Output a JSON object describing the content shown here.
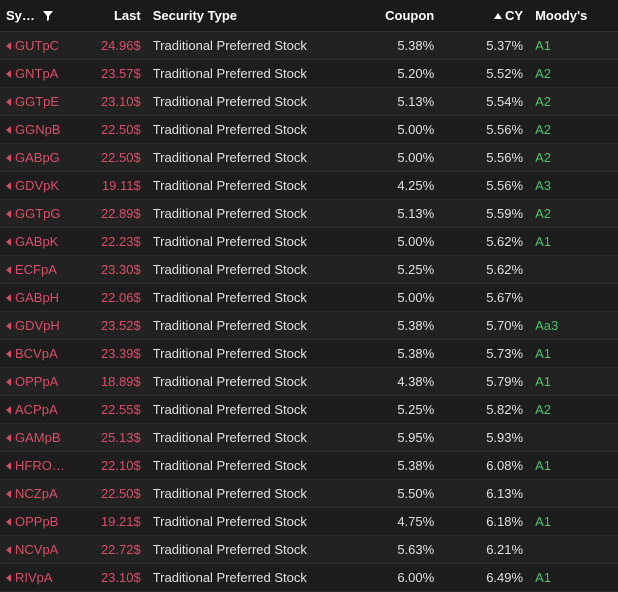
{
  "columns": {
    "symbol": "Sy…",
    "last": "Last",
    "security_type": "Security Type",
    "coupon": "Coupon",
    "cy": "CY",
    "moodys": "Moody's"
  },
  "rows": [
    {
      "symbol": "GUTpC",
      "last": "24.96$",
      "type": "Traditional Preferred Stock",
      "coupon": "5.38%",
      "cy": "5.37%",
      "moodys": "A1"
    },
    {
      "symbol": "GNTpA",
      "last": "23.57$",
      "type": "Traditional Preferred Stock",
      "coupon": "5.20%",
      "cy": "5.52%",
      "moodys": "A2"
    },
    {
      "symbol": "GGTpE",
      "last": "23.10$",
      "type": "Traditional Preferred Stock",
      "coupon": "5.13%",
      "cy": "5.54%",
      "moodys": "A2"
    },
    {
      "symbol": "GGNpB",
      "last": "22.50$",
      "type": "Traditional Preferred Stock",
      "coupon": "5.00%",
      "cy": "5.56%",
      "moodys": "A2"
    },
    {
      "symbol": "GABpG",
      "last": "22.50$",
      "type": "Traditional Preferred Stock",
      "coupon": "5.00%",
      "cy": "5.56%",
      "moodys": "A2"
    },
    {
      "symbol": "GDVpK",
      "last": "19.11$",
      "type": "Traditional Preferred Stock",
      "coupon": "4.25%",
      "cy": "5.56%",
      "moodys": "A3"
    },
    {
      "symbol": "GGTpG",
      "last": "22.89$",
      "type": "Traditional Preferred Stock",
      "coupon": "5.13%",
      "cy": "5.59%",
      "moodys": "A2"
    },
    {
      "symbol": "GABpK",
      "last": "22.23$",
      "type": "Traditional Preferred Stock",
      "coupon": "5.00%",
      "cy": "5.62%",
      "moodys": "A1"
    },
    {
      "symbol": "ECFpA",
      "last": "23.30$",
      "type": "Traditional Preferred Stock",
      "coupon": "5.25%",
      "cy": "5.62%",
      "moodys": ""
    },
    {
      "symbol": "GABpH",
      "last": "22.06$",
      "type": "Traditional Preferred Stock",
      "coupon": "5.00%",
      "cy": "5.67%",
      "moodys": ""
    },
    {
      "symbol": "GDVpH",
      "last": "23.52$",
      "type": "Traditional Preferred Stock",
      "coupon": "5.38%",
      "cy": "5.70%",
      "moodys": "Aa3"
    },
    {
      "symbol": "BCVpA",
      "last": "23.39$",
      "type": "Traditional Preferred Stock",
      "coupon": "5.38%",
      "cy": "5.73%",
      "moodys": "A1"
    },
    {
      "symbol": "OPPpA",
      "last": "18.89$",
      "type": "Traditional Preferred Stock",
      "coupon": "4.38%",
      "cy": "5.79%",
      "moodys": "A1"
    },
    {
      "symbol": "ACPpA",
      "last": "22.55$",
      "type": "Traditional Preferred Stock",
      "coupon": "5.25%",
      "cy": "5.82%",
      "moodys": "A2"
    },
    {
      "symbol": "GAMpB",
      "last": "25.13$",
      "type": "Traditional Preferred Stock",
      "coupon": "5.95%",
      "cy": "5.93%",
      "moodys": ""
    },
    {
      "symbol": "HFRO…",
      "last": "22.10$",
      "type": "Traditional Preferred Stock",
      "coupon": "5.38%",
      "cy": "6.08%",
      "moodys": "A1"
    },
    {
      "symbol": "NCZpA",
      "last": "22.50$",
      "type": "Traditional Preferred Stock",
      "coupon": "5.50%",
      "cy": "6.13%",
      "moodys": ""
    },
    {
      "symbol": "OPPpB",
      "last": "19.21$",
      "type": "Traditional Preferred Stock",
      "coupon": "4.75%",
      "cy": "6.18%",
      "moodys": "A1"
    },
    {
      "symbol": "NCVpA",
      "last": "22.72$",
      "type": "Traditional Preferred Stock",
      "coupon": "5.63%",
      "cy": "6.21%",
      "moodys": ""
    },
    {
      "symbol": "RIVpA",
      "last": "23.10$",
      "type": "Traditional Preferred Stock",
      "coupon": "6.00%",
      "cy": "6.49%",
      "moodys": "A1"
    }
  ],
  "colors": {
    "background": "#1a1a1a",
    "row_odd": "#222222",
    "row_even": "#1d1d1d",
    "header_text": "#ffffff",
    "symbol_text": "#d94f6a",
    "last_text": "#d94f6a",
    "body_text": "#e0e0e0",
    "moodys_text": "#4fbf6b",
    "border": "#2a2a2a"
  },
  "sort": {
    "column": "cy",
    "direction": "asc"
  },
  "filter": {
    "column": "symbol"
  }
}
